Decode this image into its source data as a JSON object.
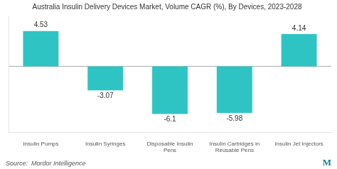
{
  "chart_data": {
    "type": "bar",
    "title": "Australia Insulin Delivery Devices Market, Volume CAGR (%), By Devices, 2023-2028",
    "categories": [
      "Insulin Pumps",
      "Insulin Syringes",
      "Disposable Insulin\nPens",
      "Insulin Cartridges in\nReusable Pens",
      "Insulin Jet Injectors"
    ],
    "values": [
      4.53,
      -3.07,
      -6.1,
      -5.98,
      4.14
    ],
    "color": "#2ec4c4",
    "ylim": [
      -8.5,
      6.5
    ],
    "grid": false,
    "data_labels": true,
    "tick_labels": "x",
    "annotations": [
      "Source:  Mordor Intelligence",
      "M"
    ]
  }
}
